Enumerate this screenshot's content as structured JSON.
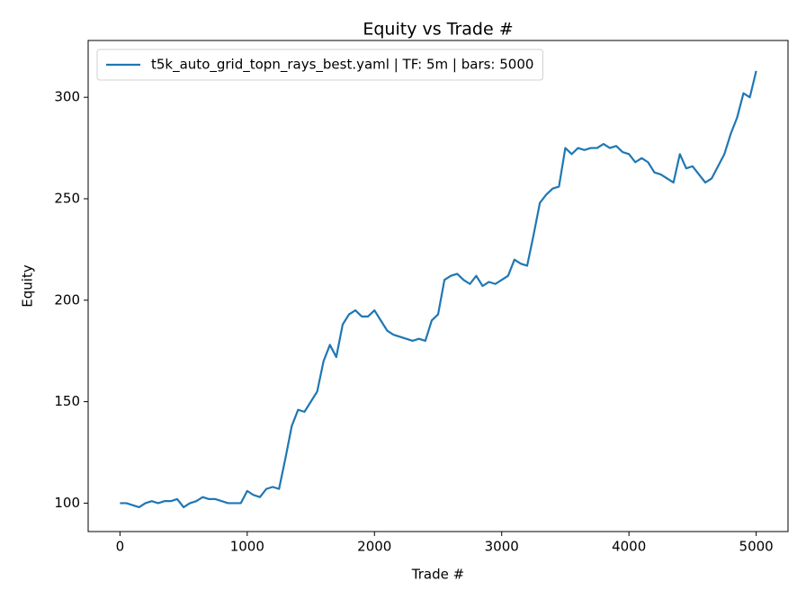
{
  "chart_data": {
    "type": "line",
    "title": "Equity vs Trade #",
    "xlabel": "Trade #",
    "ylabel": "Equity",
    "x": [
      0,
      50,
      100,
      150,
      200,
      250,
      300,
      350,
      400,
      450,
      500,
      550,
      600,
      650,
      700,
      750,
      800,
      850,
      900,
      950,
      1000,
      1050,
      1100,
      1150,
      1200,
      1250,
      1300,
      1350,
      1400,
      1450,
      1500,
      1550,
      1600,
      1650,
      1700,
      1750,
      1800,
      1850,
      1900,
      1950,
      2000,
      2050,
      2100,
      2150,
      2200,
      2250,
      2300,
      2350,
      2400,
      2450,
      2500,
      2550,
      2600,
      2650,
      2700,
      2750,
      2800,
      2850,
      2900,
      2950,
      3000,
      3050,
      3100,
      3150,
      3200,
      3250,
      3300,
      3350,
      3400,
      3450,
      3500,
      3550,
      3600,
      3650,
      3700,
      3750,
      3800,
      3850,
      3900,
      3950,
      4000,
      4050,
      4100,
      4150,
      4200,
      4250,
      4300,
      4350,
      4400,
      4450,
      4500,
      4550,
      4600,
      4650,
      4700,
      4750,
      4800,
      4850,
      4900,
      4950,
      5000
    ],
    "series": [
      {
        "name": "t5k_auto_grid_topn_rays_best.yaml | TF: 5m | bars: 5000",
        "color": "#1f77b4",
        "values": [
          100,
          100,
          99,
          98,
          100,
          101,
          100,
          101,
          101,
          102,
          98,
          100,
          101,
          103,
          102,
          102,
          101,
          100,
          100,
          100,
          106,
          104,
          103,
          107,
          108,
          107,
          122,
          138,
          146,
          145,
          150,
          155,
          170,
          178,
          172,
          188,
          193,
          195,
          192,
          192,
          195,
          190,
          185,
          183,
          182,
          181,
          180,
          181,
          180,
          190,
          193,
          210,
          212,
          213,
          210,
          208,
          212,
          207,
          209,
          208,
          210,
          212,
          220,
          218,
          217,
          232,
          248,
          252,
          255,
          256,
          275,
          272,
          275,
          274,
          275,
          275,
          277,
          275,
          276,
          273,
          272,
          268,
          270,
          268,
          263,
          262,
          260,
          258,
          272,
          265,
          266,
          262,
          258,
          260,
          266,
          272,
          282,
          290,
          302,
          300,
          313
        ]
      }
    ],
    "xlim": [
      -250,
      5250
    ],
    "ylim": [
      86,
      328
    ],
    "xticks": [
      0,
      1000,
      2000,
      3000,
      4000,
      5000
    ],
    "yticks": [
      100,
      150,
      200,
      250,
      300
    ],
    "grid": false,
    "legend": "upper left"
  }
}
